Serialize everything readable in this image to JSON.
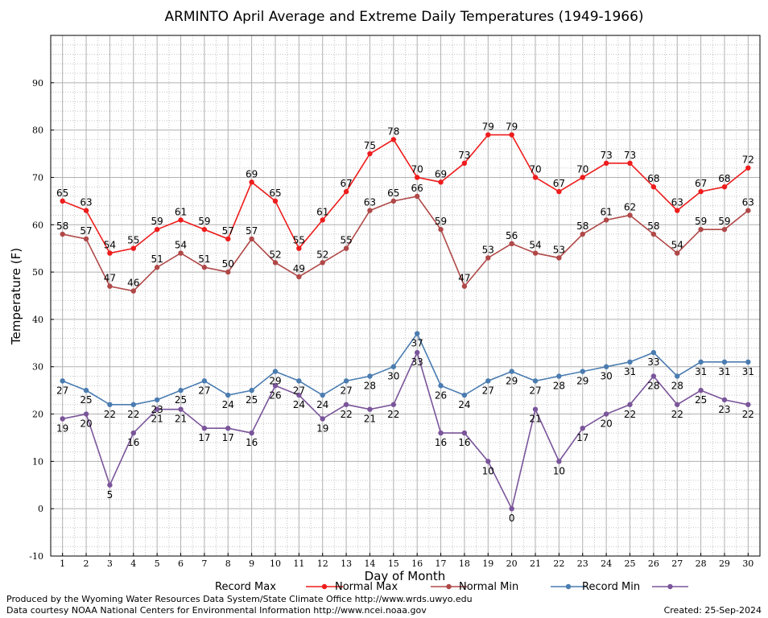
{
  "footer": {
    "produced_by": "Produced by the Wyoming Water Resources Data System/State Climate Office http://www.wrds.uwyo.edu",
    "data_courtesy": "Data courtesy NOAA National Centers for Environmental Information http://www.ncei.noaa.gov",
    "created": "Created:  25-Sep-2024"
  },
  "chart_data": {
    "type": "line",
    "title": "ARMINTO April Average and Extreme Daily Temperatures (1949-1966)",
    "xlabel": "Day of Month",
    "ylabel": "Temperature (F)",
    "ylim": [
      -10,
      100
    ],
    "yticks": [
      -10,
      0,
      10,
      20,
      30,
      40,
      50,
      60,
      70,
      80,
      90
    ],
    "xlim": [
      0.5,
      30.5
    ],
    "grid": true,
    "legend_position": "bottom",
    "x": [
      1,
      2,
      3,
      4,
      5,
      6,
      7,
      8,
      9,
      10,
      11,
      12,
      13,
      14,
      15,
      16,
      17,
      18,
      19,
      20,
      21,
      22,
      23,
      24,
      25,
      26,
      27,
      28,
      29,
      30
    ],
    "series": [
      {
        "name": "Record Max",
        "color": "#ee1c1c",
        "label_position": "above",
        "values": [
          65,
          63,
          54,
          55,
          59,
          61,
          59,
          57,
          69,
          65,
          55,
          61,
          67,
          75,
          78,
          70,
          69,
          73,
          79,
          79,
          70,
          67,
          70,
          73,
          73,
          68,
          63,
          67,
          68,
          72
        ]
      },
      {
        "name": "Normal Max",
        "color": "#b04848",
        "label_position": "above",
        "values": [
          58,
          57,
          47,
          46,
          51,
          54,
          51,
          50,
          57,
          52,
          49,
          52,
          55,
          63,
          65,
          66,
          59,
          47,
          53,
          56,
          54,
          53,
          58,
          61,
          62,
          58,
          54,
          59,
          59,
          63
        ]
      },
      {
        "name": "Normal Min",
        "color": "#4a7cb0",
        "label_position": "below",
        "values": [
          27,
          25,
          22,
          22,
          23,
          25,
          27,
          24,
          25,
          29,
          27,
          24,
          27,
          28,
          30,
          37,
          26,
          24,
          27,
          29,
          27,
          28,
          29,
          30,
          31,
          33,
          28,
          31,
          31,
          31
        ]
      },
      {
        "name": "Record Min",
        "color": "#7a559a",
        "label_position": "below",
        "values": [
          19,
          20,
          5,
          16,
          21,
          21,
          17,
          17,
          16,
          26,
          24,
          19,
          22,
          21,
          22,
          33,
          16,
          16,
          10,
          0,
          21,
          10,
          17,
          20,
          22,
          28,
          22,
          25,
          23,
          22
        ]
      }
    ]
  }
}
